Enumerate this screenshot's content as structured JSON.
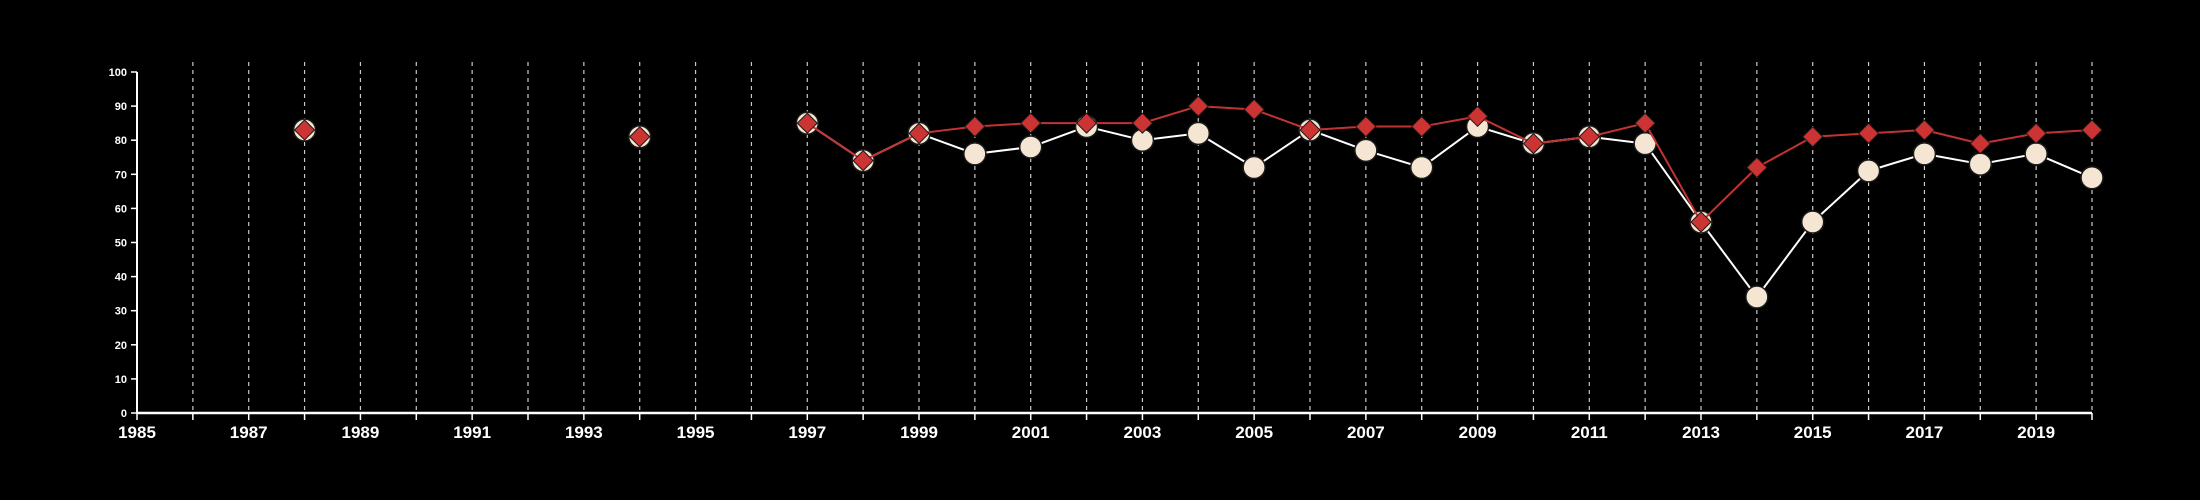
{
  "chart_data": {
    "type": "line",
    "title": "",
    "xlabel": "",
    "ylabel": "",
    "xlim": [
      1985,
      2020
    ],
    "ylim": [
      0,
      100
    ],
    "x_ticks": [
      1985,
      1987,
      1989,
      1991,
      1993,
      1995,
      1997,
      1999,
      2001,
      2003,
      2005,
      2007,
      2009,
      2011,
      2013,
      2015,
      2017,
      2019
    ],
    "y_ticks": [
      0,
      10,
      20,
      30,
      40,
      50,
      60,
      70,
      80,
      90,
      100
    ],
    "grid": "vertical dashed lines at every year",
    "legend": "none",
    "series": [
      {
        "marker": "circle",
        "color": "#ffffff",
        "marker_fill": "#f5e6d3",
        "points": [
          {
            "x": 1988,
            "y": 83
          },
          {
            "x": 1994,
            "y": 81
          },
          {
            "x": 1997,
            "y": 85
          },
          {
            "x": 1998,
            "y": 74
          },
          {
            "x": 1999,
            "y": 82
          },
          {
            "x": 2000,
            "y": 76
          },
          {
            "x": 2001,
            "y": 78
          },
          {
            "x": 2002,
            "y": 84
          },
          {
            "x": 2003,
            "y": 80
          },
          {
            "x": 2004,
            "y": 82
          },
          {
            "x": 2005,
            "y": 72
          },
          {
            "x": 2006,
            "y": 83
          },
          {
            "x": 2007,
            "y": 77
          },
          {
            "x": 2008,
            "y": 72
          },
          {
            "x": 2009,
            "y": 84
          },
          {
            "x": 2010,
            "y": 79
          },
          {
            "x": 2011,
            "y": 81
          },
          {
            "x": 2012,
            "y": 79
          },
          {
            "x": 2013,
            "y": 56
          },
          {
            "x": 2014,
            "y": 34
          },
          {
            "x": 2015,
            "y": 56
          },
          {
            "x": 2016,
            "y": 71
          },
          {
            "x": 2017,
            "y": 76
          },
          {
            "x": 2018,
            "y": 73
          },
          {
            "x": 2019,
            "y": 76
          },
          {
            "x": 2020,
            "y": 69
          }
        ]
      },
      {
        "marker": "diamond",
        "color": "#c23333",
        "marker_fill": "#cc3333",
        "points": [
          {
            "x": 1988,
            "y": 83
          },
          {
            "x": 1994,
            "y": 81
          },
          {
            "x": 1997,
            "y": 85
          },
          {
            "x": 1998,
            "y": 74
          },
          {
            "x": 1999,
            "y": 82
          },
          {
            "x": 2000,
            "y": 84
          },
          {
            "x": 2001,
            "y": 85
          },
          {
            "x": 2002,
            "y": 85
          },
          {
            "x": 2003,
            "y": 85
          },
          {
            "x": 2004,
            "y": 90
          },
          {
            "x": 2005,
            "y": 89
          },
          {
            "x": 2006,
            "y": 83
          },
          {
            "x": 2007,
            "y": 84
          },
          {
            "x": 2008,
            "y": 84
          },
          {
            "x": 2009,
            "y": 87
          },
          {
            "x": 2010,
            "y": 79
          },
          {
            "x": 2011,
            "y": 81
          },
          {
            "x": 2012,
            "y": 85
          },
          {
            "x": 2013,
            "y": 56
          },
          {
            "x": 2014,
            "y": 72
          },
          {
            "x": 2015,
            "y": 81
          },
          {
            "x": 2016,
            "y": 82
          },
          {
            "x": 2017,
            "y": 83
          },
          {
            "x": 2018,
            "y": 79
          },
          {
            "x": 2019,
            "y": 82
          },
          {
            "x": 2020,
            "y": 83
          }
        ]
      }
    ]
  },
  "colors": {
    "background": "#000000",
    "axis": "#ffffff",
    "grid": "#c8c8c8"
  }
}
